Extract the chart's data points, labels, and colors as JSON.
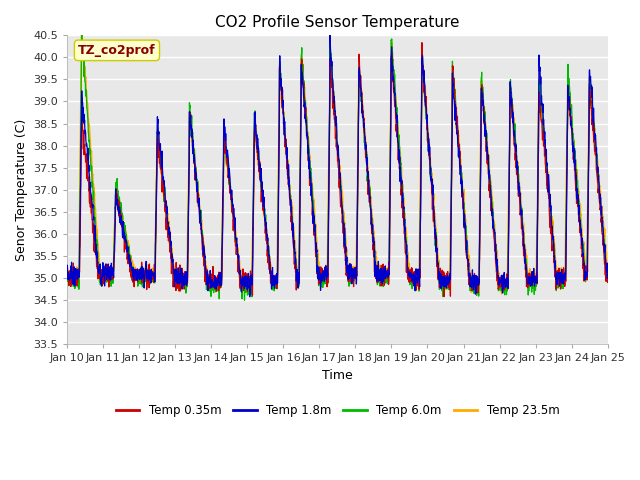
{
  "title": "CO2 Profile Sensor Temperature",
  "ylabel": "Senor Temperature (C)",
  "xlabel": "Time",
  "ylim": [
    33.5,
    40.5
  ],
  "xtick_labels": [
    "Jan 10",
    "Jan 11",
    "Jan 12",
    "Jan 13",
    "Jan 14",
    "Jan 15",
    "Jan 16",
    "Jan 17",
    "Jan 18",
    "Jan 19",
    "Jan 20",
    "Jan 21",
    "Jan 22",
    "Jan 23",
    "Jan 24",
    "Jan 25"
  ],
  "ytick_values": [
    33.5,
    34.0,
    34.5,
    35.0,
    35.5,
    36.0,
    36.5,
    37.0,
    37.5,
    38.0,
    38.5,
    39.0,
    39.5,
    40.0,
    40.5
  ],
  "colors": {
    "temp_035": "#cc0000",
    "temp_18": "#0000cc",
    "temp_60": "#00bb00",
    "temp_235": "#ffaa00"
  },
  "legend_labels": [
    "Temp 0.35m",
    "Temp 1.8m",
    "Temp 6.0m",
    "Temp 23.5m"
  ],
  "annotation_text": "TZ_co2prof",
  "annotation_color": "#880000",
  "annotation_bg": "#ffffcc",
  "background_color": "#e8e8e8",
  "figure_bg": "#ffffff",
  "title_fontsize": 11,
  "label_fontsize": 9,
  "tick_fontsize": 8
}
